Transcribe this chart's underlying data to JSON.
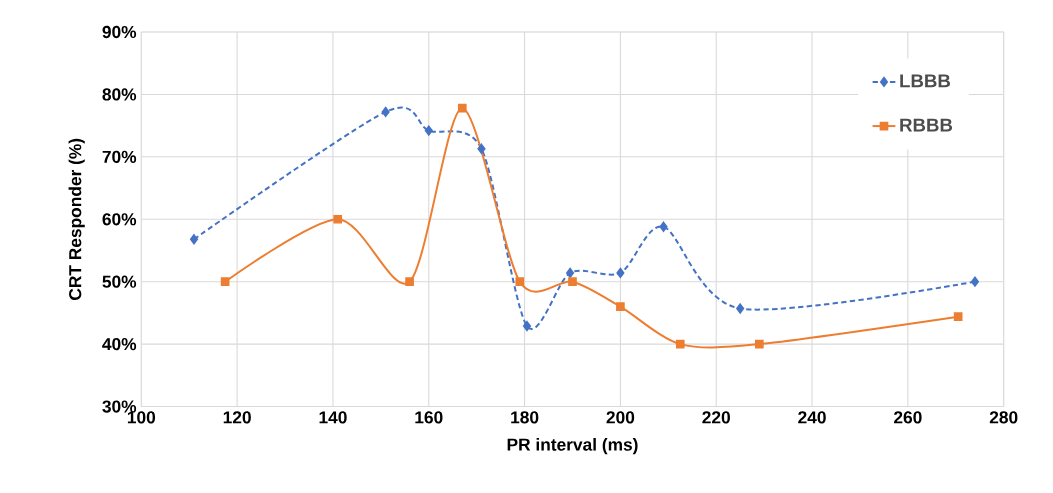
{
  "chart_data": {
    "type": "line",
    "xlabel": "PR interval (ms)",
    "ylabel": "CRT Responder (%)",
    "xlim": [
      100,
      280
    ],
    "xticks": [
      100,
      120,
      140,
      160,
      180,
      200,
      220,
      240,
      260,
      280
    ],
    "ylim": [
      30,
      90
    ],
    "yticks": [
      {
        "value": 30,
        "label": "30%"
      },
      {
        "value": 40,
        "label": "40%"
      },
      {
        "value": 50,
        "label": "50%"
      },
      {
        "value": 60,
        "label": "60%"
      },
      {
        "value": 70,
        "label": "70%"
      },
      {
        "value": 80,
        "label": "80%"
      },
      {
        "value": 90,
        "label": "90%"
      }
    ],
    "grid": true,
    "legend": "top right",
    "series": [
      {
        "name": "LBBB",
        "color": "#4472c4",
        "marker": "diamond",
        "line_style": "dashed",
        "x": [
          111,
          151,
          160,
          171,
          180.5,
          189.5,
          200,
          209,
          225,
          274
        ],
        "values": [
          56.8,
          77.2,
          74.2,
          71.3,
          42.9,
          51.4,
          51.4,
          58.8,
          45.7,
          50
        ]
      },
      {
        "name": "RBBB",
        "color": "#ed7d31",
        "marker": "square",
        "line_style": "solid",
        "x": [
          117.5,
          141,
          156,
          167,
          179,
          190,
          200,
          212.5,
          229,
          270.5
        ],
        "values": [
          50,
          60,
          50,
          77.8,
          50,
          50,
          46,
          40,
          40,
          44.4
        ]
      }
    ]
  }
}
